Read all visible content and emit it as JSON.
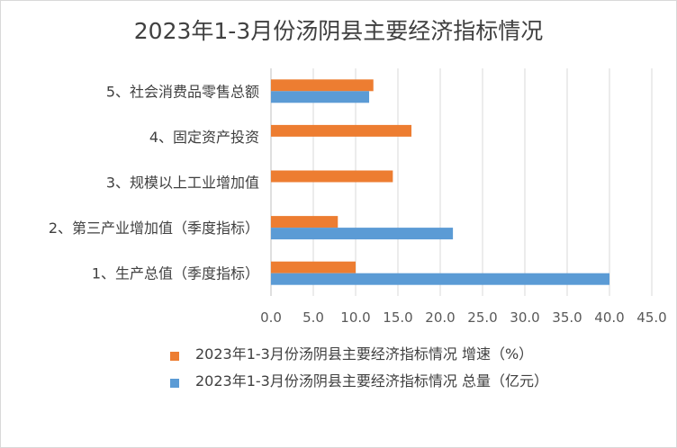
{
  "chart_data": {
    "type": "bar",
    "orientation": "horizontal",
    "title": "2023年1-3月份汤阴县主要经济指标情况",
    "categories": [
      "1、生产总值（季度指标）",
      "2、第三产业增加值（季度指标）",
      "3、规模以上工业增加值",
      "4、固定资产投资",
      "5、社会消费品零售总额"
    ],
    "series": [
      {
        "name": "2023年1-3月份汤阴县主要经济指标情况 增速（%）",
        "color": "#ED7D31",
        "values": [
          10.0,
          7.9,
          14.4,
          16.6,
          12.1
        ]
      },
      {
        "name": "2023年1-3月份汤阴县主要经济指标情况 总量（亿元）",
        "color": "#5B9BD5",
        "values": [
          40.0,
          21.5,
          null,
          null,
          11.6
        ]
      }
    ],
    "xlim": [
      0,
      45
    ],
    "xticks": [
      "0.0",
      "5.0",
      "10.0",
      "15.0",
      "20.0",
      "25.0",
      "30.0",
      "35.0",
      "40.0",
      "45.0"
    ],
    "grid": true,
    "legend_position": "bottom"
  }
}
